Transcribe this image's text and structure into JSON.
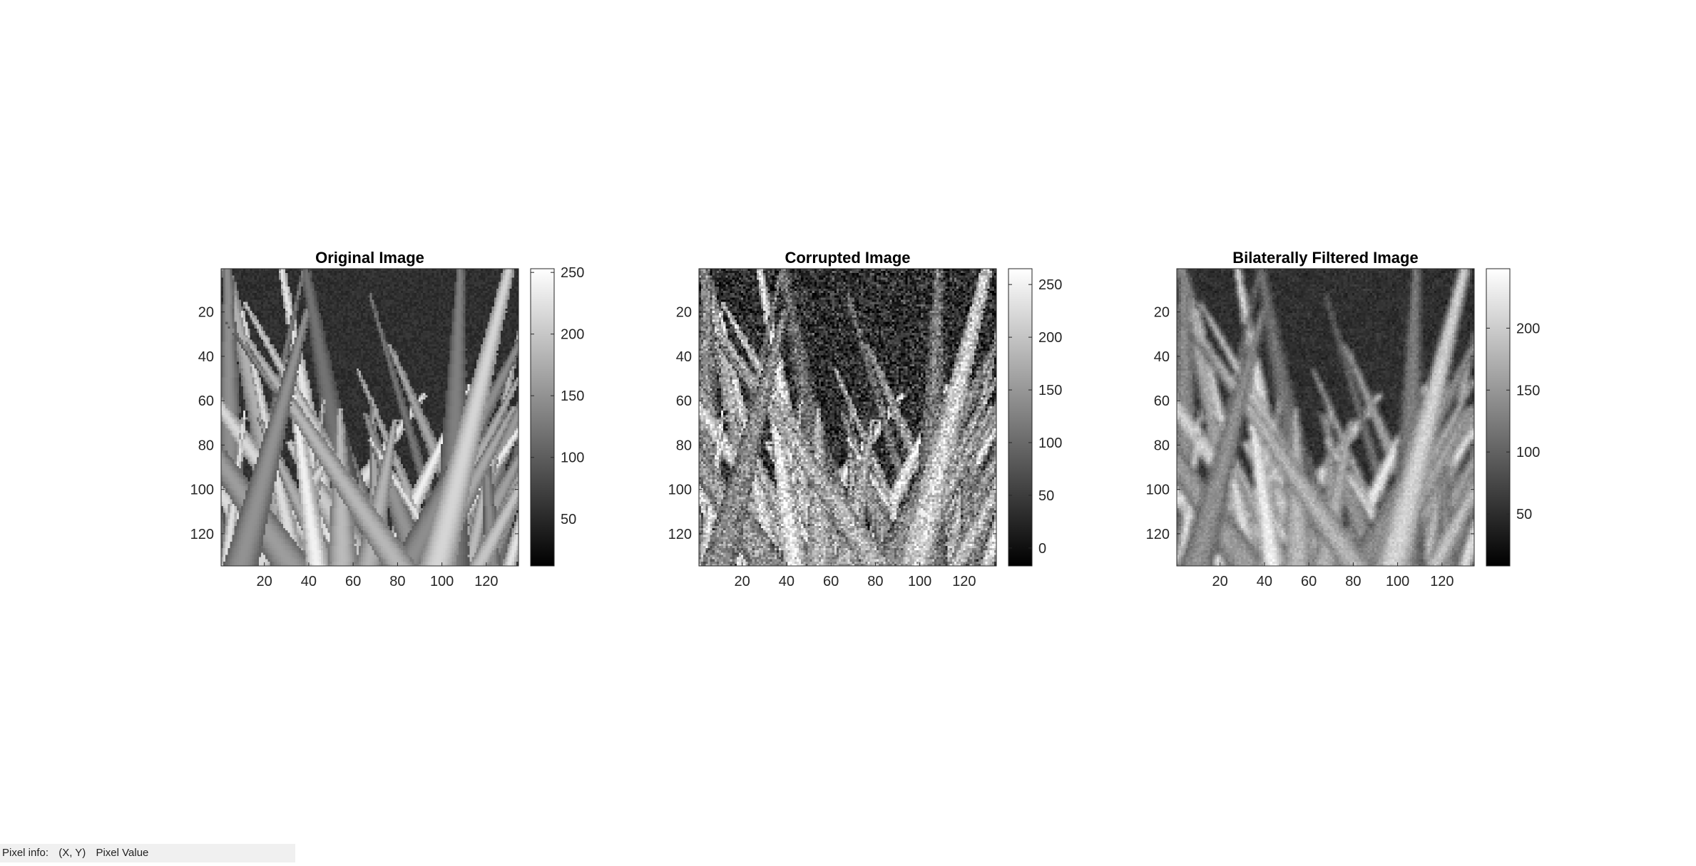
{
  "status_bar": {
    "label": "Pixel info:",
    "coords": "(X, Y)",
    "value": "Pixel Value"
  },
  "colors": {
    "background": "#ffffff",
    "axis": "#262626",
    "status_bar_bg": "#f0f0f0",
    "colormap": "gray"
  },
  "panels": [
    {
      "title": "Original Image",
      "image_description_id": "grass-original",
      "x_ticks": [
        "20",
        "40",
        "60",
        "80",
        "100",
        "120"
      ],
      "y_ticks": [
        "20",
        "40",
        "60",
        "80",
        "100",
        "120"
      ],
      "colorbar_ticks": [
        "250",
        "200",
        "150",
        "100",
        "50"
      ],
      "colorbar_range": [
        12,
        253
      ],
      "noise": 0,
      "blur": 0
    },
    {
      "title": "Corrupted Image",
      "image_description_id": "grass-corrupted",
      "x_ticks": [
        "20",
        "40",
        "60",
        "80",
        "100",
        "120"
      ],
      "y_ticks": [
        "20",
        "40",
        "60",
        "80",
        "100",
        "120"
      ],
      "colorbar_ticks": [
        "250",
        "200",
        "150",
        "100",
        "50",
        "0"
      ],
      "colorbar_range": [
        -17,
        265
      ],
      "noise": 1,
      "blur": 0
    },
    {
      "title": "Bilaterally Filtered Image",
      "image_description_id": "grass-filtered",
      "x_ticks": [
        "20",
        "40",
        "60",
        "80",
        "100",
        "120"
      ],
      "y_ticks": [
        "20",
        "40",
        "60",
        "80",
        "100",
        "120"
      ],
      "colorbar_ticks": [
        "200",
        "150",
        "100",
        "50"
      ],
      "colorbar_range": [
        8,
        248
      ],
      "noise": 0.25,
      "blur": 1
    }
  ],
  "chart_data": [
    {
      "type": "heatmap",
      "title": "Original Image",
      "xlim": [
        0.5,
        134.5
      ],
      "ylim": [
        0.5,
        134.5
      ],
      "x_ticks": [
        20,
        40,
        60,
        80,
        100,
        120
      ],
      "y_ticks": [
        20,
        40,
        60,
        80,
        100,
        120
      ],
      "colorbar": {
        "range": [
          12,
          253
        ],
        "ticks": [
          50,
          100,
          150,
          200,
          250
        ]
      }
    },
    {
      "type": "heatmap",
      "title": "Corrupted Image",
      "xlim": [
        0.5,
        134.5
      ],
      "ylim": [
        0.5,
        134.5
      ],
      "x_ticks": [
        20,
        40,
        60,
        80,
        100,
        120
      ],
      "y_ticks": [
        20,
        40,
        60,
        80,
        100,
        120
      ],
      "colorbar": {
        "range": [
          -17,
          265
        ],
        "ticks": [
          0,
          50,
          100,
          150,
          200,
          250
        ]
      }
    },
    {
      "type": "heatmap",
      "title": "Bilaterally Filtered Image",
      "xlim": [
        0.5,
        134.5
      ],
      "ylim": [
        0.5,
        134.5
      ],
      "x_ticks": [
        20,
        40,
        60,
        80,
        100,
        120
      ],
      "y_ticks": [
        20,
        40,
        60,
        80,
        100,
        120
      ],
      "colorbar": {
        "range": [
          8,
          248
        ],
        "ticks": [
          50,
          100,
          150,
          200
        ]
      }
    }
  ]
}
